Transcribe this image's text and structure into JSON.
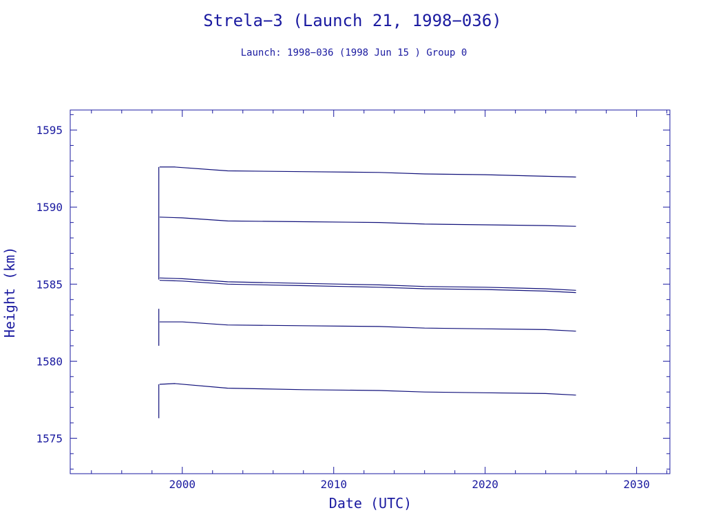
{
  "colors": {
    "axis": "#1a1aa0",
    "series": "#10107a",
    "background": "#ffffff"
  },
  "chart_data": {
    "type": "line",
    "title": "Strela−3 (Launch 21, 1998−036)",
    "subtitle": "Launch: 1998−036  (1998 Jun 15 )  Group 0",
    "xlabel": "Date (UTC)",
    "ylabel": "Height (km)",
    "xlim": [
      1992.6,
      2032.2
    ],
    "ylim": [
      1572.7,
      1596.3
    ],
    "xticks": [
      2000,
      2010,
      2020,
      2030
    ],
    "xtick_labels": [
      "2000",
      "2010",
      "2020",
      "2030"
    ],
    "yticks": [
      1575,
      1580,
      1585,
      1590,
      1595
    ],
    "ytick_labels": [
      "1575",
      "1580",
      "1585",
      "1590",
      "1595"
    ],
    "grid": false,
    "launch_marks": [
      {
        "x": 1998.45,
        "y_range": [
          1585.3,
          1592.6
        ]
      },
      {
        "x": 1998.45,
        "y_range": [
          1581.0,
          1583.4
        ]
      },
      {
        "x": 1998.45,
        "y_range": [
          1576.3,
          1578.5
        ]
      }
    ],
    "series": [
      {
        "x": [
          1998.5,
          1999.5,
          2003,
          2008,
          2013,
          2016,
          2020,
          2024,
          2026
        ],
        "y": [
          1592.6,
          1592.6,
          1592.35,
          1592.3,
          1592.25,
          1592.15,
          1592.1,
          1592.0,
          1591.95
        ]
      },
      {
        "x": [
          1998.5,
          2000,
          2003,
          2008,
          2013,
          2016,
          2020,
          2024,
          2026
        ],
        "y": [
          1589.35,
          1589.3,
          1589.1,
          1589.05,
          1589.0,
          1588.9,
          1588.85,
          1588.8,
          1588.75
        ]
      },
      {
        "x": [
          1998.5,
          2000,
          2003,
          2008,
          2013,
          2016,
          2020,
          2024,
          2026
        ],
        "y": [
          1585.4,
          1585.35,
          1585.15,
          1585.05,
          1584.95,
          1584.85,
          1584.8,
          1584.7,
          1584.6
        ]
      },
      {
        "x": [
          1998.5,
          2000,
          2003,
          2008,
          2013,
          2016,
          2020,
          2024,
          2026
        ],
        "y": [
          1585.25,
          1585.2,
          1585.0,
          1584.9,
          1584.8,
          1584.7,
          1584.65,
          1584.55,
          1584.45
        ]
      },
      {
        "x": [
          1998.5,
          2000,
          2003,
          2008,
          2013,
          2016,
          2020,
          2024,
          2026
        ],
        "y": [
          1582.55,
          1582.55,
          1582.35,
          1582.3,
          1582.25,
          1582.15,
          1582.1,
          1582.05,
          1581.95
        ]
      },
      {
        "x": [
          1998.5,
          1999.5,
          2003,
          2008,
          2013,
          2016,
          2020,
          2024,
          2026
        ],
        "y": [
          1578.5,
          1578.55,
          1578.25,
          1578.15,
          1578.1,
          1578.0,
          1577.95,
          1577.9,
          1577.8
        ]
      }
    ]
  }
}
